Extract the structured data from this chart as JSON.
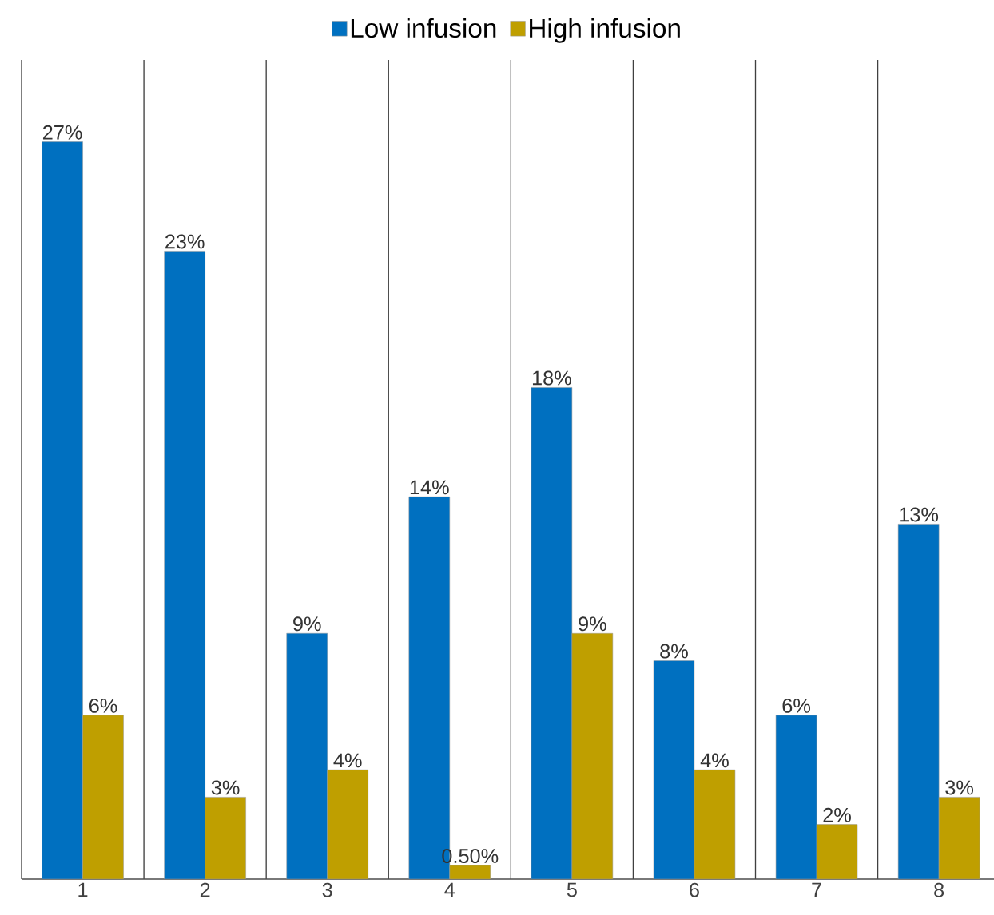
{
  "chart_data": {
    "type": "bar",
    "categories": [
      "1",
      "2",
      "3",
      "4",
      "5",
      "6",
      "7",
      "8"
    ],
    "series": [
      {
        "name": "Low infusion",
        "color": "#0070c0",
        "values": [
          27,
          23,
          9,
          14,
          18,
          8,
          6,
          13
        ],
        "value_labels": [
          "27%",
          "23%",
          "9%",
          "14%",
          "18%",
          "8%",
          "6%",
          "13%"
        ]
      },
      {
        "name": "High infusion",
        "color": "#bf9f00",
        "values": [
          6,
          3,
          4,
          0.5,
          9,
          4,
          2,
          3
        ],
        "value_labels": [
          "6%",
          "3%",
          "4%",
          "0.50%",
          "9%",
          "4%",
          "2%",
          "3%"
        ]
      }
    ],
    "ylim": [
      0,
      30
    ],
    "grid": "x",
    "legend": "top",
    "tick_labels": "x"
  }
}
